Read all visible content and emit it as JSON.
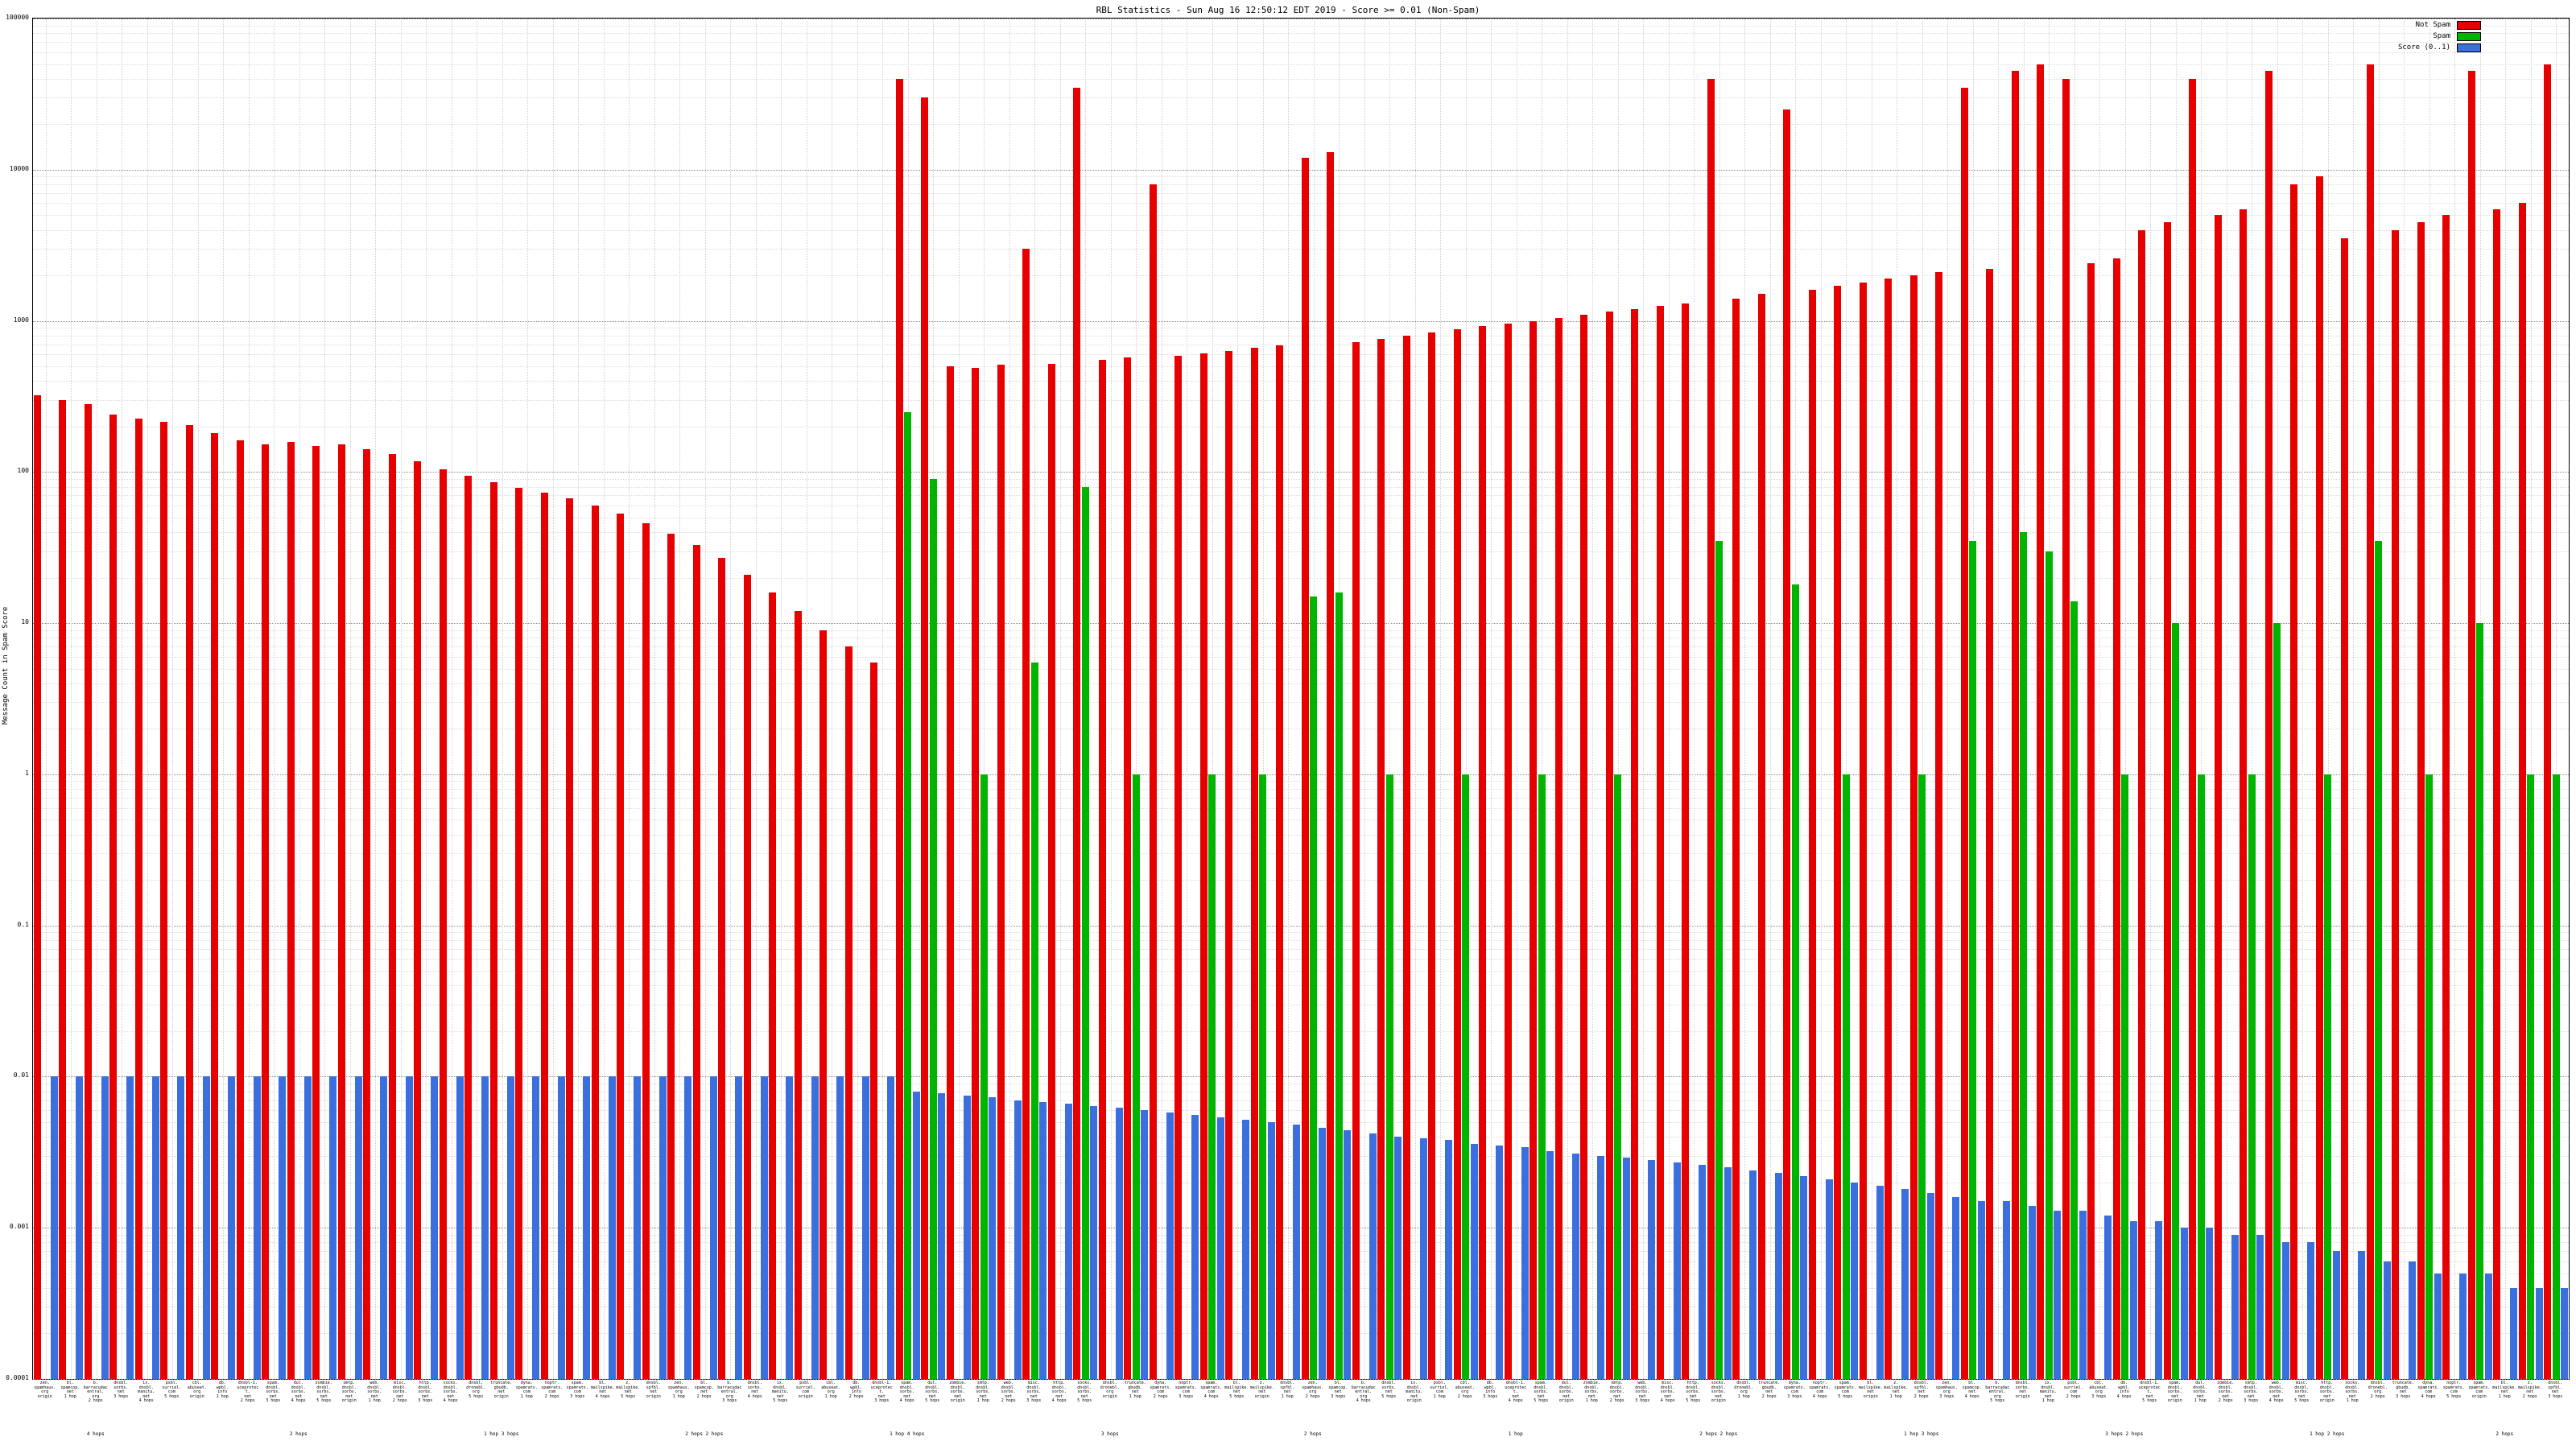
{
  "chart_data": {
    "type": "bar",
    "title": "RBL Statistics - Sun Aug 16 12:50:12 EDT 2019 - Score >= 0.01 (Non-Spam)",
    "ylabel": "Message Count in Spam Score",
    "scale": "log",
    "ylim": [
      0.0001,
      100000
    ],
    "grid": true,
    "legend_position": "top-right",
    "y_ticks": [
      "100000",
      "10000",
      "1000",
      "100",
      "10",
      "1",
      "0.1",
      "0.01",
      "0.001",
      "0.0001"
    ],
    "categories": [
      "zen.spamhaus.org",
      "bl.spamcop.net",
      "b.barracudacentral.org",
      "dnsbl.sorbs.net",
      "ix.dnsbl.manitu.net",
      "psbl.surriel.com",
      "cbl.abuseat.org",
      "db.wpbl.info",
      "dnsbl-1.uceprotect.net",
      "spam.dnsbl.sorbs.net",
      "dul.dnsbl.sorbs.net",
      "zombie.dnsbl.sorbs.net",
      "smtp.dnsbl.sorbs.net",
      "web.dnsbl.sorbs.net",
      "misc.dnsbl.sorbs.net",
      "http.dnsbl.sorbs.net",
      "socks.dnsbl.sorbs.net",
      "dnsbl.dronebl.org",
      "truncate.gbudb.net",
      "dyna.spamrats.com",
      "noptr.spamrats.com",
      "spam.spamrats.com",
      "bl.mailspike.net",
      "z.mailspike.net",
      "dnsbl.spfbl.net",
      "zen.spamhaus.org",
      "bl.spamcop.net",
      "b.barracudacentral.org",
      "dnsbl.sorbs.net",
      "ix.dnsbl.manitu.net",
      "psbl.surriel.com",
      "cbl.abuseat.org",
      "db.wpbl.info",
      "dnsbl-1.uceprotect.net",
      "spam.dnsbl.sorbs.net",
      "dul.dnsbl.sorbs.net",
      "zombie.dnsbl.sorbs.net",
      "smtp.dnsbl.sorbs.net",
      "web.dnsbl.sorbs.net",
      "misc.dnsbl.sorbs.net",
      "http.dnsbl.sorbs.net",
      "socks.dnsbl.sorbs.net",
      "dnsbl.dronebl.org",
      "truncate.gbudb.net",
      "dyna.spamrats.com",
      "noptr.spamrats.com",
      "spam.spamrats.com",
      "bl.mailspike.net",
      "z.mailspike.net",
      "dnsbl.spfbl.net",
      "zen.spamhaus.org",
      "bl.spamcop.net",
      "b.barracudacentral.org",
      "dnsbl.sorbs.net",
      "ix.dnsbl.manitu.net",
      "psbl.surriel.com",
      "cbl.abuseat.org",
      "db.wpbl.info",
      "dnsbl-1.uceprotect.net",
      "spam.dnsbl.sorbs.net",
      "dul.dnsbl.sorbs.net",
      "zombie.dnsbl.sorbs.net",
      "smtp.dnsbl.sorbs.net",
      "web.dnsbl.sorbs.net",
      "misc.dnsbl.sorbs.net",
      "http.dnsbl.sorbs.net",
      "socks.dnsbl.sorbs.net",
      "dnsbl.dronebl.org",
      "truncate.gbudb.net",
      "dyna.spamrats.com",
      "noptr.spamrats.com",
      "spam.spamrats.com",
      "bl.mailspike.net",
      "z.mailspike.net",
      "dnsbl.spfbl.net",
      "zen.spamhaus.org",
      "bl.spamcop.net",
      "b.barracudacentral.org",
      "dnsbl.sorbs.net",
      "ix.dnsbl.manitu.net",
      "psbl.surriel.com",
      "cbl.abuseat.org",
      "db.wpbl.info",
      "dnsbl-1.uceprotect.net",
      "spam.dnsbl.sorbs.net",
      "dul.dnsbl.sorbs.net",
      "zombie.dnsbl.sorbs.net",
      "smtp.dnsbl.sorbs.net",
      "web.dnsbl.sorbs.net",
      "misc.dnsbl.sorbs.net",
      "http.dnsbl.sorbs.net",
      "socks.dnsbl.sorbs.net",
      "dnsbl.dronebl.org",
      "truncate.gbudb.net",
      "dyna.spamrats.com",
      "noptr.spamrats.com",
      "spam.spamrats.com",
      "bl.mailspike.net",
      "z.mailspike.net",
      "dnsbl.spfbl.net"
    ],
    "hops": [
      "origin",
      "1 hop",
      "2 hops",
      "3 hops",
      "4 hops",
      "5 hops",
      "origin",
      "1 hop",
      "2 hops",
      "3 hops",
      "4 hops",
      "5 hops",
      "origin",
      "1 hop",
      "2 hops",
      "3 hops",
      "4 hops",
      "5 hops",
      "origin",
      "1 hop",
      "2 hops",
      "3 hops",
      "4 hops",
      "5 hops",
      "origin",
      "1 hop",
      "2 hops",
      "3 hops",
      "4 hops",
      "5 hops",
      "origin",
      "1 hop",
      "2 hops",
      "3 hops",
      "4 hops",
      "5 hops",
      "origin",
      "1 hop",
      "2 hops",
      "3 hops",
      "4 hops",
      "5 hops",
      "origin",
      "1 hop",
      "2 hops",
      "3 hops",
      "4 hops",
      "5 hops",
      "origin",
      "1 hop",
      "2 hops",
      "3 hops",
      "4 hops",
      "5 hops",
      "origin",
      "1 hop",
      "2 hops",
      "3 hops",
      "4 hops",
      "5 hops",
      "origin",
      "1 hop",
      "2 hops",
      "3 hops",
      "4 hops",
      "5 hops",
      "origin",
      "1 hop",
      "2 hops",
      "3 hops",
      "4 hops",
      "5 hops",
      "origin",
      "1 hop",
      "2 hops",
      "3 hops",
      "4 hops",
      "5 hops",
      "origin",
      "1 hop",
      "2 hops",
      "3 hops",
      "4 hops",
      "5 hops",
      "origin",
      "1 hop",
      "2 hops",
      "3 hops",
      "4 hops",
      "5 hops",
      "origin",
      "1 hop",
      "2 hops",
      "3 hops",
      "4 hops",
      "5 hops",
      "origin",
      "1 hop",
      "2 hops",
      "3 hops"
    ],
    "series": [
      {
        "name": "Not Spam",
        "color": "#e60000",
        "values": [
          320,
          300,
          280,
          240,
          225,
          215,
          205,
          180,
          162,
          152,
          158,
          148,
          152,
          142,
          132,
          118,
          104,
          94,
          86,
          79,
          73,
          67,
          60,
          53,
          46,
          39,
          33,
          27,
          21,
          16,
          12,
          9,
          7,
          5.5,
          40000,
          30000,
          500,
          490,
          510,
          3000,
          520,
          35000,
          550,
          570,
          8000,
          590,
          610,
          630,
          660,
          690,
          12000,
          13000,
          720,
          760,
          800,
          840,
          880,
          920,
          960,
          1000,
          1050,
          1100,
          1150,
          1200,
          1250,
          1300,
          40000,
          1400,
          1500,
          25000,
          1600,
          1700,
          1800,
          1900,
          2000,
          2100,
          35000,
          2200,
          45000,
          50000,
          40000,
          2400,
          2600,
          4000,
          4500,
          40000,
          5000,
          5500,
          45000,
          8000,
          9000,
          3500,
          50000,
          4000,
          4500,
          5000,
          45000,
          5500,
          6000,
          50000
        ]
      },
      {
        "name": "Spam",
        "color": "#00b400",
        "values": [
          null,
          null,
          null,
          null,
          null,
          null,
          null,
          null,
          null,
          null,
          null,
          null,
          null,
          null,
          null,
          null,
          null,
          null,
          null,
          null,
          null,
          null,
          null,
          null,
          null,
          null,
          null,
          null,
          null,
          null,
          null,
          null,
          null,
          null,
          250,
          90,
          null,
          1,
          null,
          5.5,
          null,
          80,
          null,
          1,
          null,
          null,
          1,
          null,
          1,
          null,
          15,
          16,
          null,
          1,
          null,
          null,
          1,
          null,
          null,
          1,
          null,
          null,
          1,
          null,
          null,
          null,
          35,
          null,
          null,
          18,
          null,
          1,
          null,
          null,
          1,
          null,
          35,
          null,
          40,
          30,
          14,
          null,
          1,
          null,
          10,
          1,
          null,
          1,
          10,
          null,
          1,
          null,
          35,
          null,
          1,
          null,
          10,
          null,
          1,
          1
        ]
      },
      {
        "name": "Score (0..1)",
        "color": "#3a6fdd",
        "values": [
          0.01,
          0.01,
          0.01,
          0.01,
          0.01,
          0.01,
          0.01,
          0.01,
          0.01,
          0.01,
          0.01,
          0.01,
          0.01,
          0.01,
          0.01,
          0.01,
          0.01,
          0.01,
          0.01,
          0.01,
          0.01,
          0.01,
          0.01,
          0.01,
          0.01,
          0.01,
          0.01,
          0.01,
          0.01,
          0.01,
          0.01,
          0.01,
          0.01,
          0.01,
          0.008,
          0.0078,
          0.0075,
          0.0073,
          0.007,
          0.0068,
          0.0066,
          0.0064,
          0.0062,
          0.006,
          0.0058,
          0.0056,
          0.0054,
          0.0052,
          0.005,
          0.0048,
          0.0046,
          0.0044,
          0.0042,
          0.004,
          0.0039,
          0.0038,
          0.0036,
          0.0035,
          0.0034,
          0.0032,
          0.0031,
          0.003,
          0.0029,
          0.0028,
          0.0027,
          0.0026,
          0.0025,
          0.0024,
          0.0023,
          0.0022,
          0.0021,
          0.002,
          0.0019,
          0.0018,
          0.0017,
          0.0016,
          0.0015,
          0.0015,
          0.0014,
          0.0013,
          0.0013,
          0.0012,
          0.0011,
          0.0011,
          0.001,
          0.001,
          0.0009,
          0.0009,
          0.0008,
          0.0008,
          0.0007,
          0.0007,
          0.0006,
          0.0006,
          0.0005,
          0.0005,
          0.0005,
          0.0004,
          0.0004,
          0.0004
        ]
      }
    ],
    "bottom_labels": [
      {
        "i": 2,
        "text": "4 hops"
      },
      {
        "i": 10,
        "text": "2 hops"
      },
      {
        "i": 18,
        "text": "1 hop 3 hops"
      },
      {
        "i": 26,
        "text": "2 hops 2 hops"
      },
      {
        "i": 34,
        "text": "1 hop 4 hops"
      },
      {
        "i": 42,
        "text": "3 hops"
      },
      {
        "i": 50,
        "text": "2 hops"
      },
      {
        "i": 58,
        "text": "1 hop"
      },
      {
        "i": 66,
        "text": "2 hops 2 hops"
      },
      {
        "i": 74,
        "text": "1 hop 3 hops"
      },
      {
        "i": 82,
        "text": "3 hops 2 hops"
      },
      {
        "i": 90,
        "text": "1 hop 2 hops"
      },
      {
        "i": 97,
        "text": "2 hops"
      }
    ]
  }
}
